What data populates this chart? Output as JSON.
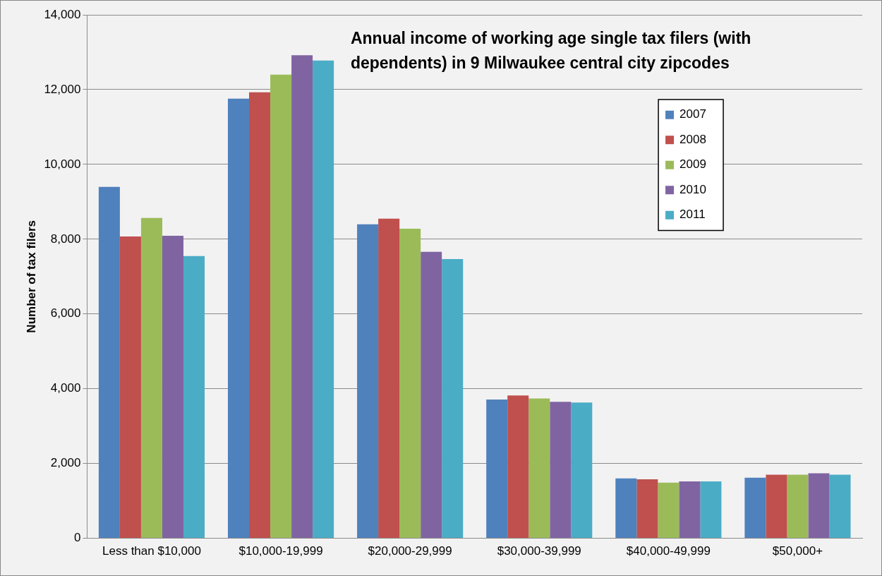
{
  "chart_data": {
    "type": "bar",
    "title": "Annual income of working age single tax filers (with dependents) in 9 Milwaukee central city zipcodes",
    "ylabel": "Number of tax filers",
    "categories": [
      "Less than $10,000",
      "$10,000-19,999",
      "$20,000-29,999",
      "$30,000-39,999",
      "$40,000-49,999",
      "$50,000+"
    ],
    "series": [
      {
        "name": "2007",
        "color": "#4f81bd",
        "values": [
          9400,
          11760,
          8400,
          3710,
          1600,
          1620
        ]
      },
      {
        "name": "2008",
        "color": "#c0504d",
        "values": [
          8070,
          11930,
          8550,
          3820,
          1580,
          1700
        ]
      },
      {
        "name": "2009",
        "color": "#9bbb59",
        "values": [
          8570,
          12400,
          8280,
          3740,
          1490,
          1700
        ]
      },
      {
        "name": "2010",
        "color": "#8064a2",
        "values": [
          8090,
          12920,
          7660,
          3650,
          1520,
          1740
        ]
      },
      {
        "name": "2011",
        "color": "#4bacc6",
        "values": [
          7550,
          12780,
          7470,
          3630,
          1520,
          1700
        ]
      }
    ],
    "ylim": [
      0,
      14000
    ],
    "yticks": [
      {
        "value": 0,
        "label": "0"
      },
      {
        "value": 2000,
        "label": "2,000"
      },
      {
        "value": 4000,
        "label": "4,000"
      },
      {
        "value": 6000,
        "label": "6,000"
      },
      {
        "value": 8000,
        "label": "8,000"
      },
      {
        "value": 10000,
        "label": "10,000"
      },
      {
        "value": 12000,
        "label": "12,000"
      },
      {
        "value": 14000,
        "label": "14,000"
      }
    ],
    "grid": "y",
    "legend": "top right"
  }
}
